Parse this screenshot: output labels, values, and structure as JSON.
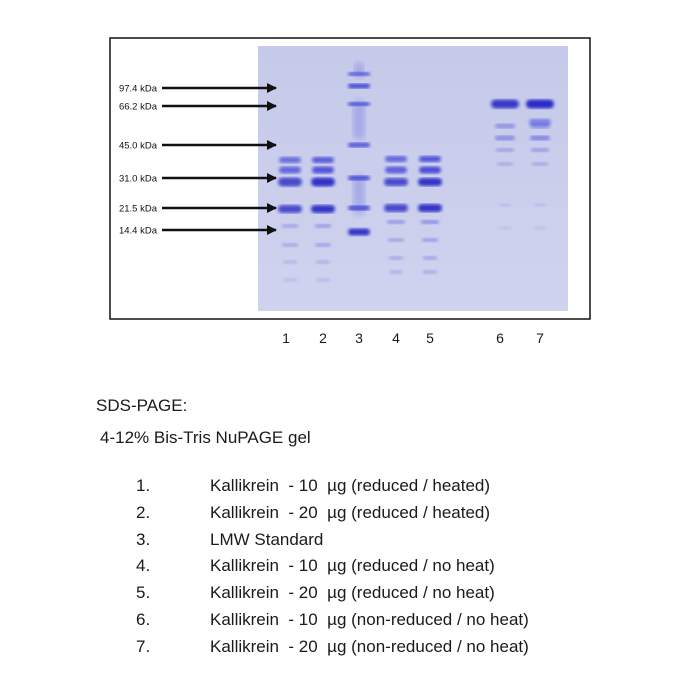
{
  "markers": [
    {
      "label": "97.4 kDa",
      "kda": 97.4
    },
    {
      "label": "66.2 kDa",
      "kda": 66.2
    },
    {
      "label": "45.0 kDa",
      "kda": 45.0
    },
    {
      "label": "31.0 kDa",
      "kda": 31.0
    },
    {
      "label": "21.5 kDa",
      "kda": 21.5
    },
    {
      "label": "14.4 kDa",
      "kda": 14.4
    }
  ],
  "lanes": [
    "1",
    "2",
    "3",
    "4",
    "5",
    "6",
    "7"
  ],
  "heading": "SDS-PAGE:",
  "subheading": "4-12% Bis-Tris NuPAGE gel",
  "legend": [
    {
      "num": "1.",
      "text": "Kallikrein  - 10  µg (reduced / heated)"
    },
    {
      "num": "2.",
      "text": "Kallikrein  - 20  µg (reduced / heated)"
    },
    {
      "num": "3.",
      "text": "LMW Standard"
    },
    {
      "num": "4.",
      "text": "Kallikrein  - 10  µg (reduced / no heat)"
    },
    {
      "num": "5.",
      "text": "Kallikrein  - 20  µg (reduced / no heat)"
    },
    {
      "num": "6.",
      "text": "Kallikrein  - 10  µg (non-reduced / no heat)"
    },
    {
      "num": "7.",
      "text": "Kallikrein  - 20  µg (non-reduced / no heat)"
    }
  ],
  "colors": {
    "gel": "#c9cdeb",
    "band": "#3b3ed6",
    "band_dark": "#2a2bc4",
    "arrow": "#111111"
  }
}
